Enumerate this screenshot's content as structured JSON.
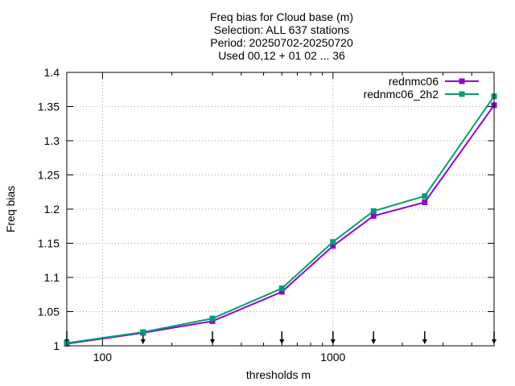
{
  "chart_data": {
    "type": "line",
    "title_lines": [
      "Freq bias  for Cloud base (m)",
      "Selection: ALL    637 stations",
      "Period: 20250702-20250720",
      "Used 00,12 + 01 02 ... 36"
    ],
    "xlabel": "thresholds m",
    "ylabel": "Freq bias",
    "x_scale": "log",
    "xlim": [
      70,
      5000
    ],
    "ylim": [
      1.0,
      1.4
    ],
    "x_ticks": [
      100,
      1000
    ],
    "x_tick_labels": [
      "100",
      "1000"
    ],
    "y_ticks": [
      1.0,
      1.05,
      1.1,
      1.15,
      1.2,
      1.25,
      1.3,
      1.35,
      1.4
    ],
    "y_tick_labels": [
      "1",
      "1.05",
      "1.1",
      "1.15",
      "1.2",
      "1.25",
      "1.3",
      "1.35",
      "1.4"
    ],
    "grid": true,
    "legend_position": "top-right",
    "x": [
      70,
      150,
      300,
      600,
      1000,
      1500,
      2500,
      5000
    ],
    "series": [
      {
        "name": "rednmc06",
        "color": "#9400d3",
        "values": [
          1.003,
          1.019,
          1.036,
          1.079,
          1.146,
          1.19,
          1.21,
          1.352
        ]
      },
      {
        "name": "rednmc06_2h2",
        "color": "#009e73",
        "values": [
          1.004,
          1.02,
          1.04,
          1.084,
          1.152,
          1.197,
          1.219,
          1.365
        ]
      }
    ],
    "sample_markers_x": [
      70,
      150,
      300,
      600,
      1000,
      1500,
      2500,
      5000
    ]
  }
}
